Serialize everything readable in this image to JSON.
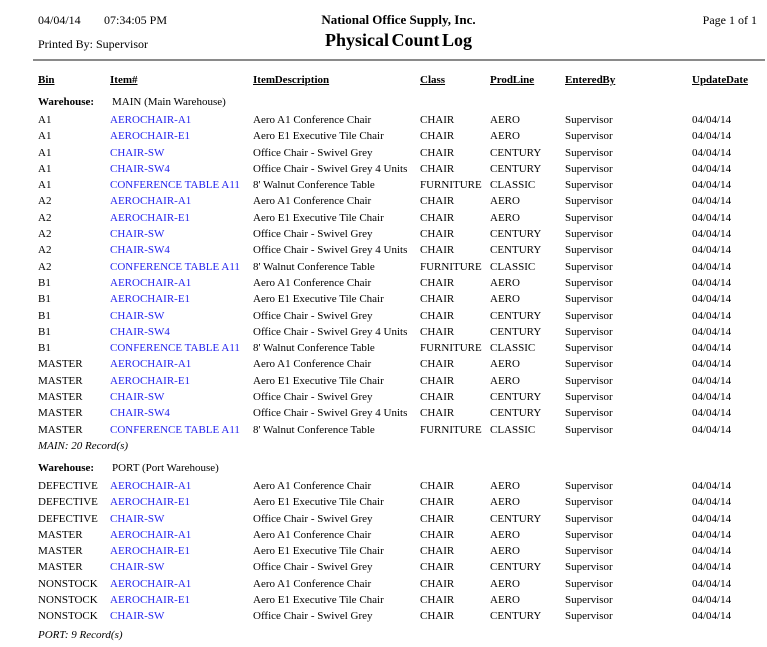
{
  "header": {
    "date": "04/04/14",
    "time": "07:34:05 PM",
    "company": "National Office Supply, Inc.",
    "page_label": "Page 1 of 1",
    "printed_by": "Printed By: Supervisor",
    "title": "Physical Count Log"
  },
  "columns": [
    "Bin",
    "Item#",
    "Item Description",
    "Class",
    "Prod Line",
    "Entered By",
    "Update Date"
  ],
  "colors": {
    "link_blue": "#2323ee",
    "rule_gray": "#8a8a8a",
    "text": "#000000",
    "background": "#ffffff"
  },
  "groups": [
    {
      "warehouse_label": "Warehouse:",
      "warehouse_value": "MAIN (Main Warehouse)",
      "rows": [
        [
          "A1",
          "AEROCHAIR-A1",
          "Aero A1 Conference Chair",
          "CHAIR",
          "AERO",
          "Supervisor",
          "04/04/14"
        ],
        [
          "A1",
          "AEROCHAIR-E1",
          "Aero E1 Executive Tile Chair",
          "CHAIR",
          "AERO",
          "Supervisor",
          "04/04/14"
        ],
        [
          "A1",
          "CHAIR-SW",
          "Office Chair - Swivel Grey",
          "CHAIR",
          "CENTURY",
          "Supervisor",
          "04/04/14"
        ],
        [
          "A1",
          "CHAIR-SW4",
          "Office Chair - Swivel Grey 4 Units",
          "CHAIR",
          "CENTURY",
          "Supervisor",
          "04/04/14"
        ],
        [
          "A1",
          "CONFERENCE TABLE A11",
          "8' Walnut Conference Table",
          "FURNITURE",
          "CLASSIC",
          "Supervisor",
          "04/04/14"
        ],
        [
          "A2",
          "AEROCHAIR-A1",
          "Aero A1 Conference Chair",
          "CHAIR",
          "AERO",
          "Supervisor",
          "04/04/14"
        ],
        [
          "A2",
          "AEROCHAIR-E1",
          "Aero E1 Executive Tile Chair",
          "CHAIR",
          "AERO",
          "Supervisor",
          "04/04/14"
        ],
        [
          "A2",
          "CHAIR-SW",
          "Office Chair - Swivel Grey",
          "CHAIR",
          "CENTURY",
          "Supervisor",
          "04/04/14"
        ],
        [
          "A2",
          "CHAIR-SW4",
          "Office Chair - Swivel Grey 4 Units",
          "CHAIR",
          "CENTURY",
          "Supervisor",
          "04/04/14"
        ],
        [
          "A2",
          "CONFERENCE TABLE A11",
          "8' Walnut Conference Table",
          "FURNITURE",
          "CLASSIC",
          "Supervisor",
          "04/04/14"
        ],
        [
          "B1",
          "AEROCHAIR-A1",
          "Aero A1 Conference Chair",
          "CHAIR",
          "AERO",
          "Supervisor",
          "04/04/14"
        ],
        [
          "B1",
          "AEROCHAIR-E1",
          "Aero E1 Executive Tile Chair",
          "CHAIR",
          "AERO",
          "Supervisor",
          "04/04/14"
        ],
        [
          "B1",
          "CHAIR-SW",
          "Office Chair - Swivel Grey",
          "CHAIR",
          "CENTURY",
          "Supervisor",
          "04/04/14"
        ],
        [
          "B1",
          "CHAIR-SW4",
          "Office Chair - Swivel Grey 4 Units",
          "CHAIR",
          "CENTURY",
          "Supervisor",
          "04/04/14"
        ],
        [
          "B1",
          "CONFERENCE TABLE A11",
          "8' Walnut Conference Table",
          "FURNITURE",
          "CLASSIC",
          "Supervisor",
          "04/04/14"
        ],
        [
          "MASTER",
          "AEROCHAIR-A1",
          "Aero A1 Conference Chair",
          "CHAIR",
          "AERO",
          "Supervisor",
          "04/04/14"
        ],
        [
          "MASTER",
          "AEROCHAIR-E1",
          "Aero E1 Executive Tile Chair",
          "CHAIR",
          "AERO",
          "Supervisor",
          "04/04/14"
        ],
        [
          "MASTER",
          "CHAIR-SW",
          "Office Chair - Swivel Grey",
          "CHAIR",
          "CENTURY",
          "Supervisor",
          "04/04/14"
        ],
        [
          "MASTER",
          "CHAIR-SW4",
          "Office Chair - Swivel Grey 4 Units",
          "CHAIR",
          "CENTURY",
          "Supervisor",
          "04/04/14"
        ],
        [
          "MASTER",
          "CONFERENCE TABLE A11",
          "8' Walnut Conference Table",
          "FURNITURE",
          "CLASSIC",
          "Supervisor",
          "04/04/14"
        ]
      ],
      "footer": "MAIN: 20 Record(s)"
    },
    {
      "warehouse_label": "Warehouse:",
      "warehouse_value": "PORT (Port Warehouse)",
      "rows": [
        [
          "DEFECTIVE",
          "AEROCHAIR-A1",
          "Aero A1 Conference Chair",
          "CHAIR",
          "AERO",
          "Supervisor",
          "04/04/14"
        ],
        [
          "DEFECTIVE",
          "AEROCHAIR-E1",
          "Aero E1 Executive Tile Chair",
          "CHAIR",
          "AERO",
          "Supervisor",
          "04/04/14"
        ],
        [
          "DEFECTIVE",
          "CHAIR-SW",
          "Office Chair - Swivel Grey",
          "CHAIR",
          "CENTURY",
          "Supervisor",
          "04/04/14"
        ],
        [
          "MASTER",
          "AEROCHAIR-A1",
          "Aero A1 Conference Chair",
          "CHAIR",
          "AERO",
          "Supervisor",
          "04/04/14"
        ],
        [
          "MASTER",
          "AEROCHAIR-E1",
          "Aero E1 Executive Tile Chair",
          "CHAIR",
          "AERO",
          "Supervisor",
          "04/04/14"
        ],
        [
          "MASTER",
          "CHAIR-SW",
          "Office Chair - Swivel Grey",
          "CHAIR",
          "CENTURY",
          "Supervisor",
          "04/04/14"
        ],
        [
          "NONSTOCK",
          "AEROCHAIR-A1",
          "Aero A1 Conference Chair",
          "CHAIR",
          "AERO",
          "Supervisor",
          "04/04/14"
        ],
        [
          "NONSTOCK",
          "AEROCHAIR-E1",
          "Aero E1 Executive Tile Chair",
          "CHAIR",
          "AERO",
          "Supervisor",
          "04/04/14"
        ],
        [
          "NONSTOCK",
          "CHAIR-SW",
          "Office Chair - Swivel Grey",
          "CHAIR",
          "CENTURY",
          "Supervisor",
          "04/04/14"
        ]
      ],
      "footer": "PORT: 9 Record(s)"
    }
  ]
}
